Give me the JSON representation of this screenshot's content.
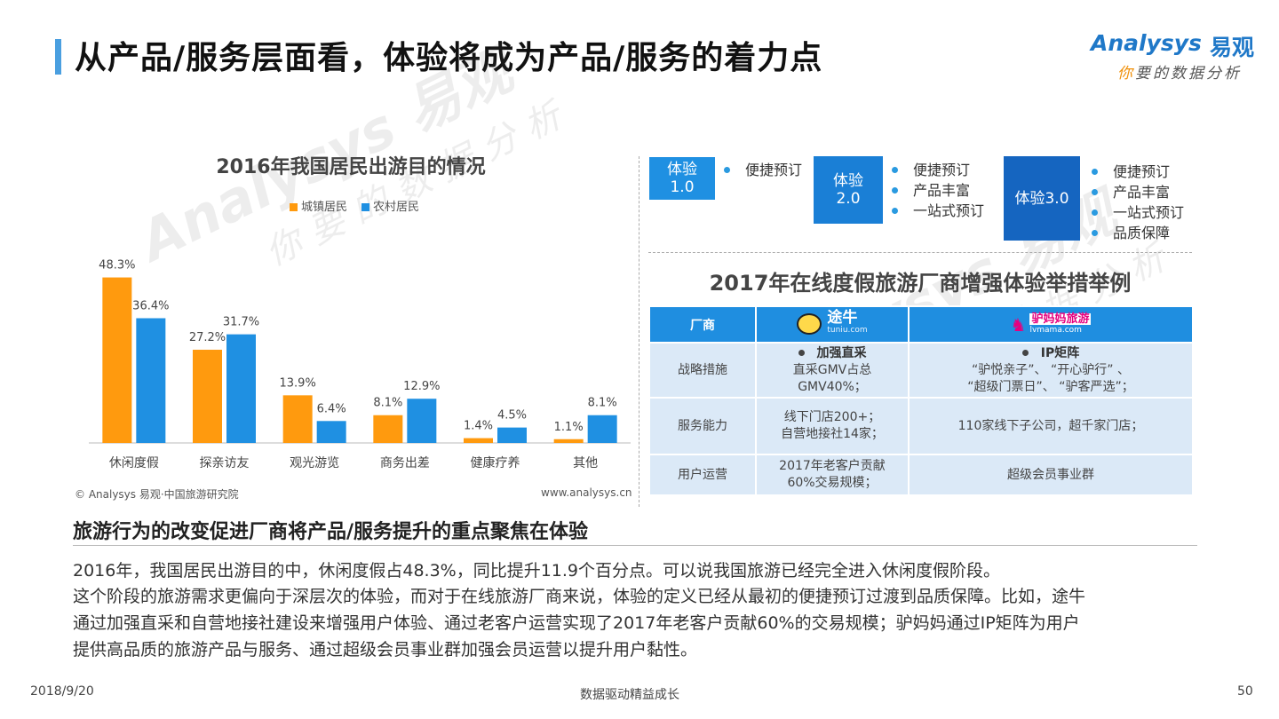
{
  "header": {
    "title": "从产品/服务层面看，体验将成为产品/服务的着力点",
    "logo_en": "Analysys",
    "logo_cn": "易观",
    "slogan_first": "你",
    "slogan_rest": "要的数据分析"
  },
  "watermark": {
    "line1": "Analysys 易观",
    "line2": "你要的数据分析"
  },
  "chart_data": {
    "type": "bar",
    "title": "2016年我国居民出游目的情况",
    "categories": [
      "休闲度假",
      "探亲访友",
      "观光游览",
      "商务出差",
      "健康疗养",
      "其他"
    ],
    "series": [
      {
        "name": "城镇居民",
        "values": [
          48.3,
          27.2,
          13.9,
          8.1,
          1.4,
          1.1
        ],
        "labels": [
          "48.3%",
          "27.2%",
          "13.9%",
          "8.1%",
          "1.4%",
          "1.1%"
        ],
        "color": "#ff9a0e"
      },
      {
        "name": "农村居民",
        "values": [
          36.4,
          31.7,
          6.4,
          12.9,
          4.5,
          8.1
        ],
        "labels": [
          "36.4%",
          "31.7%",
          "6.4%",
          "12.9%",
          "4.5%",
          "8.1%"
        ],
        "color": "#1f90e2"
      }
    ],
    "ylim": [
      0,
      50
    ],
    "grid": false,
    "legend": "top-center",
    "source_left": "© Analysys 易观·中国旅游研究院",
    "source_right": "www.analysys.cn"
  },
  "experience": {
    "stages": [
      {
        "label_lines": [
          "体验",
          "1.0"
        ],
        "color": "#1f90e2",
        "items": [
          "便捷预订"
        ]
      },
      {
        "label_lines": [
          "体验",
          "2.0"
        ],
        "color": "#1a7fd6",
        "items": [
          "便捷预订",
          "产品丰富",
          "一站式预订"
        ]
      },
      {
        "label_lines": [
          "体验3.0"
        ],
        "color": "#1565c0",
        "items": [
          "便捷预订",
          "产品丰富",
          "一站式预订",
          "品质保障"
        ]
      }
    ]
  },
  "vendor_table": {
    "title": "2017年在线度假旅游厂商增强体验举措举例",
    "header_col": "厂商",
    "vendors": [
      {
        "logo_main": "途牛",
        "logo_sub": "tuniu.com",
        "color": "#222"
      },
      {
        "logo_main": "驴妈妈旅游",
        "logo_sub": "lvmama.com",
        "color": "#e6007e"
      }
    ],
    "rows": [
      {
        "label": "战略措施",
        "tuniu_head": "加强直采",
        "tuniu_lines": [
          "直采GMV占总",
          "GMV40%；"
        ],
        "lvmama_head": "IP矩阵",
        "lvmama_lines": [
          "“驴悦亲子”、 “开心驴行” 、",
          "“超级门票日”、 “驴客严选”；"
        ]
      },
      {
        "label": "服务能力",
        "tuniu_lines": [
          "线下门店200+；",
          "自营地接社14家；"
        ],
        "lvmama_lines": [
          "110家线下子公司，超千家门店；"
        ]
      },
      {
        "label": "用户运营",
        "tuniu_lines": [
          "2017年老客户贡献",
          "60%交易规模；"
        ],
        "lvmama_lines": [
          "超级会员事业群"
        ]
      }
    ]
  },
  "summary": {
    "heading": "旅游行为的改变促进厂商将产品/服务提升的重点聚焦在体验",
    "lines": [
      "2016年，我国居民出游目的中，休闲度假占48.3%，同比提升11.9个百分点。可以说我国旅游已经完全进入休闲度假阶段。",
      "这个阶段的旅游需求更偏向于深层次的体验，而对于在线旅游厂商来说，体验的定义已经从最初的便捷预订过渡到品质保障。比如，途牛",
      "通过加强直采和自营地接社建设来增强用户体验、通过老客户运营实现了2017年老客户贡献60%的交易规模；驴妈妈通过IP矩阵为用户",
      "提供高品质的旅游产品与服务、通过超级会员事业群加强会员运营以提升用户黏性。"
    ]
  },
  "footer": {
    "date": "2018/9/20",
    "slogan": "数据驱动精益成长",
    "page": "50"
  }
}
